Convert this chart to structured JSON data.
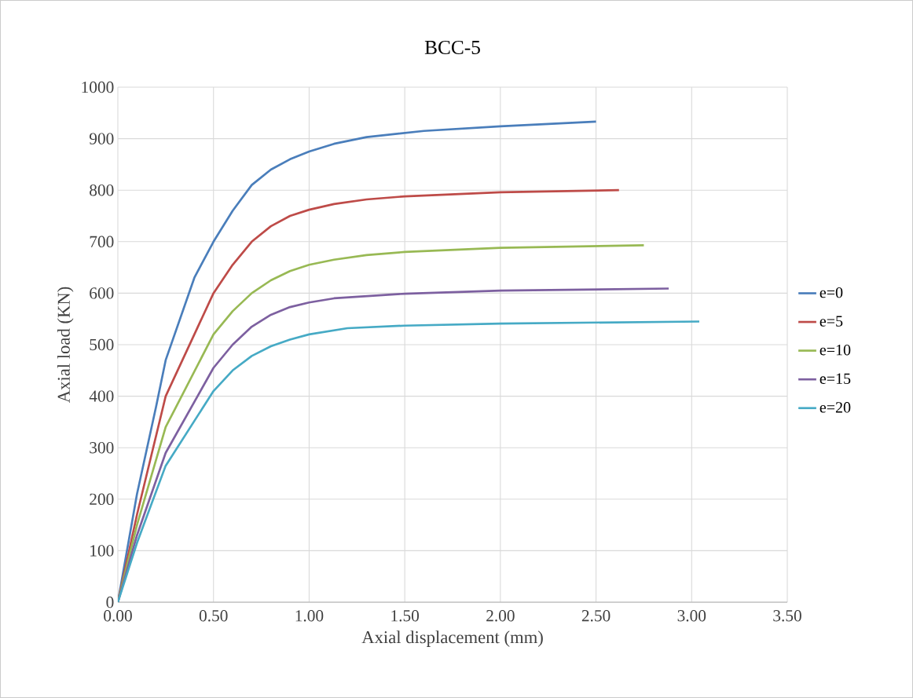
{
  "chart_data": {
    "type": "line",
    "title": "BCC-5",
    "xlabel": "Axial displacement (mm)",
    "ylabel": "Axial load (KN)",
    "xlim": [
      0,
      3.5
    ],
    "ylim": [
      0,
      1000
    ],
    "xticks": [
      {
        "value": 0,
        "label": "0.00"
      },
      {
        "value": 0.5,
        "label": "0.50"
      },
      {
        "value": 1,
        "label": "1.00"
      },
      {
        "value": 1.5,
        "label": "1.50"
      },
      {
        "value": 2,
        "label": "2.00"
      },
      {
        "value": 2.5,
        "label": "2.50"
      },
      {
        "value": 3,
        "label": "3.00"
      },
      {
        "value": 3.5,
        "label": "3.50"
      }
    ],
    "yticks": [
      0,
      100,
      200,
      300,
      400,
      500,
      600,
      700,
      800,
      900,
      1000
    ],
    "grid": true,
    "legend": "right",
    "marker": "none",
    "line_style": "solid",
    "series": [
      {
        "name": "e=0",
        "color": "#4a7ebb",
        "x": [
          0,
          0.1,
          0.2,
          0.25,
          0.4,
          0.5,
          0.6,
          0.7,
          0.8,
          0.9,
          1.0,
          1.13,
          1.3,
          1.6,
          2.0,
          2.5
        ],
        "values": [
          0,
          210,
          380,
          470,
          630,
          700,
          760,
          810,
          840,
          860,
          875,
          890,
          903,
          915,
          924,
          933
        ]
      },
      {
        "name": "e=5",
        "color": "#be4b48",
        "x": [
          0,
          0.1,
          0.25,
          0.5,
          0.6,
          0.7,
          0.8,
          0.9,
          1.0,
          1.13,
          1.3,
          1.5,
          2.0,
          2.62
        ],
        "values": [
          0,
          170,
          400,
          600,
          655,
          700,
          730,
          750,
          762,
          773,
          782,
          788,
          796,
          800
        ]
      },
      {
        "name": "e=10",
        "color": "#98b954",
        "x": [
          0,
          0.1,
          0.25,
          0.5,
          0.6,
          0.7,
          0.8,
          0.9,
          1.0,
          1.13,
          1.3,
          1.5,
          2.0,
          2.75
        ],
        "values": [
          0,
          150,
          340,
          520,
          565,
          600,
          625,
          643,
          655,
          665,
          674,
          680,
          688,
          693
        ]
      },
      {
        "name": "e=15",
        "color": "#7d60a0",
        "x": [
          0,
          0.1,
          0.25,
          0.5,
          0.6,
          0.7,
          0.8,
          0.9,
          1.0,
          1.13,
          1.5,
          2.0,
          2.88
        ],
        "values": [
          0,
          130,
          290,
          455,
          500,
          535,
          558,
          573,
          582,
          590,
          599,
          605,
          609
        ]
      },
      {
        "name": "e=20",
        "color": "#46aac5",
        "x": [
          0,
          0.1,
          0.25,
          0.5,
          0.6,
          0.7,
          0.8,
          0.9,
          1.0,
          1.2,
          1.5,
          2.0,
          3.04
        ],
        "values": [
          0,
          115,
          265,
          410,
          450,
          478,
          497,
          510,
          520,
          532,
          537,
          541,
          545
        ]
      }
    ]
  }
}
